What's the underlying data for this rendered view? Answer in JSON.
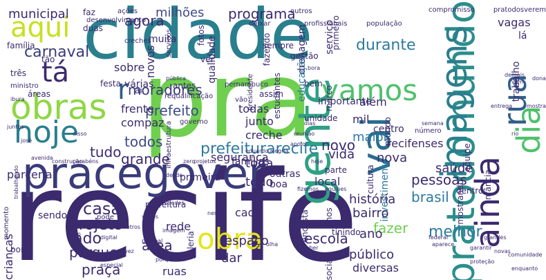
{
  "words": [
    {
      "text": "recife",
      "color": "#3b2a6e",
      "rot": 0
    },
    {
      "text": "pra",
      "color": "#6fcf4e",
      "rot": 0
    },
    {
      "text": "cidade",
      "color": "#2a7f8e",
      "rot": 0
    },
    {
      "text": "pracegover",
      "color": "#3a3b7a",
      "rot": 0
    },
    {
      "text": "pratodomundo",
      "color": "#2b8e8c",
      "rot": -90
    },
    {
      "text": "gente",
      "color": "#2fa084",
      "rot": -90
    },
    {
      "text": "imagens",
      "color": "#2a7f8e",
      "rot": -90
    },
    {
      "text": "vai",
      "color": "#2a6d8f",
      "rot": -90
    },
    {
      "text": "ainda",
      "color": "#3b2a6e",
      "rot": -90
    },
    {
      "text": "dia",
      "color": "#4fc16b",
      "rot": -90
    },
    {
      "text": "rua",
      "color": "#2f5d8c",
      "rot": -90
    },
    {
      "text": "obras",
      "color": "#8fd744",
      "rot": 0
    },
    {
      "text": "hoje",
      "color": "#2a7f8e",
      "rot": 0
    },
    {
      "text": "vamos",
      "color": "#4fc16b",
      "rot": 0
    },
    {
      "text": "aqui",
      "color": "#c8e020",
      "rot": 0
    },
    {
      "text": "tá",
      "color": "#3b2a6e",
      "rot": 0
    },
    {
      "text": "obra",
      "color": "#e6e419",
      "rot": 0
    },
    {
      "text": "r",
      "color": "#2f5d8c",
      "rot": 0
    },
    {
      "text": "prefeiturarecife",
      "color": "#2c7aa0",
      "rot": 0
    },
    {
      "text": "municipal",
      "color": "#3b2a6e",
      "rot": 0
    },
    {
      "text": "agora",
      "color": "#3b2a6e",
      "rot": 0
    },
    {
      "text": "milhões",
      "color": "#3e4a89",
      "rot": 0
    },
    {
      "text": "programa",
      "color": "#3b2a6e",
      "rot": 0
    },
    {
      "text": "durante",
      "color": "#2c7aa0",
      "rot": 0
    },
    {
      "text": "carnaval",
      "color": "#3a3b7a",
      "rot": 0
    },
    {
      "text": "moradores",
      "color": "#3a3b7a",
      "rot": 0
    },
    {
      "text": "sobre",
      "color": "#3b2a6e",
      "rot": 0
    },
    {
      "text": "várias",
      "color": "#3b2a6e",
      "rot": 0
    },
    {
      "text": "drenagem",
      "color": "#3b2a6e",
      "rot": -90
    },
    {
      "text": "serviço",
      "color": "#3b2a6e",
      "rot": -90
    },
    {
      "text": "vagas",
      "color": "#3b2a6e",
      "rot": 0
    },
    {
      "text": "lá",
      "color": "#3b2a6e",
      "rot": 0
    },
    {
      "text": "trabalho",
      "color": "#3b2a6e",
      "rot": -90
    },
    {
      "text": "investimento",
      "color": "#2c7aa0",
      "rot": -90
    },
    {
      "text": "prefeito",
      "color": "#3e4a89",
      "rot": 0
    },
    {
      "text": "todos",
      "color": "#3e4a89",
      "rot": 0
    },
    {
      "text": "grande",
      "color": "#3b2a6e",
      "rot": 0
    },
    {
      "text": "tudo",
      "color": "#3b2a6e",
      "rot": 0
    },
    {
      "text": "parceria",
      "color": "#3b2a6e",
      "rot": 0
    },
    {
      "text": "educação",
      "color": "#2c7aa0",
      "rot": -90
    },
    {
      "text": "além",
      "color": "#3b2a6e",
      "rot": 0
    },
    {
      "text": "mil",
      "color": "#3b2a6e",
      "rot": 0
    },
    {
      "text": "maior",
      "color": "#2c7aa0",
      "rot": 0
    },
    {
      "text": "novo",
      "color": "#3b2a6e",
      "rot": 0
    },
    {
      "text": "vida",
      "color": "#3b2a6e",
      "rot": 0
    },
    {
      "text": "segurança",
      "color": "#3b2a6e",
      "rot": 0
    },
    {
      "text": "famílias",
      "color": "#3b2a6e",
      "rot": 0
    },
    {
      "text": "recifenses",
      "color": "#3b2a6e",
      "rot": 0
    },
    {
      "text": "nova",
      "color": "#3b2a6e",
      "rot": 0
    },
    {
      "text": "saúde",
      "color": "#3b2a6e",
      "rot": 0
    },
    {
      "text": "pessoas",
      "color": "#3b2a6e",
      "rot": 0
    },
    {
      "text": "brasil",
      "color": "#2c7aa0",
      "rot": 0
    },
    {
      "text": "casa",
      "color": "#3b2a6e",
      "rot": 0
    },
    {
      "text": "projeto",
      "color": "#3b2a6e",
      "rot": 0
    },
    {
      "text": "lado",
      "color": "#3b2a6e",
      "rot": 0
    },
    {
      "text": "parque",
      "color": "#3b2a6e",
      "rot": 0
    },
    {
      "text": "crianças",
      "color": "#3b2a6e",
      "rot": -90
    },
    {
      "text": "praça",
      "color": "#3b2a6e",
      "rot": 0
    },
    {
      "text": "área",
      "color": "#3b2a6e",
      "rot": 0
    },
    {
      "text": "todo",
      "color": "#3b2a6e",
      "rot": 0
    },
    {
      "text": "toda",
      "color": "#3b2a6e",
      "rot": 0
    },
    {
      "text": "rede",
      "color": "#3b2a6e",
      "rot": 0
    },
    {
      "text": "cada",
      "color": "#3b2a6e",
      "rot": 0
    },
    {
      "text": "escola",
      "color": "#3b2a6e",
      "rot": 0
    },
    {
      "text": "fazer",
      "color": "#6fcf4e",
      "rot": 0
    },
    {
      "text": "melhor",
      "color": "#2c7aa0",
      "rot": 0
    },
    {
      "text": "ano",
      "color": "#3b2a6e",
      "rot": 0
    },
    {
      "text": "bairro",
      "color": "#3b2a6e",
      "rot": 0
    },
    {
      "text": "história",
      "color": "#3b2a6e",
      "rot": 0
    },
    {
      "text": "público",
      "color": "#3b2a6e",
      "rot": 0
    },
    {
      "text": "diversas",
      "color": "#3b2a6e",
      "rot": 0
    },
    {
      "text": "espaço",
      "color": "#3b2a6e",
      "rot": 0
    },
    {
      "text": "dar",
      "color": "#3b2a6e",
      "rot": 0
    },
    {
      "text": "ruas",
      "color": "#3b2a6e",
      "rot": 0
    },
    {
      "text": "frente",
      "color": "#3b2a6e",
      "rot": 0
    },
    {
      "text": "compaz",
      "color": "#3b2a6e",
      "rot": 0
    },
    {
      "text": "todas",
      "color": "#3b2a6e",
      "rot": 0
    },
    {
      "text": "junto",
      "color": "#3b2a6e",
      "rot": 0
    },
    {
      "text": "creche",
      "color": "#3b2a6e",
      "rot": 0
    },
    {
      "text": "centro",
      "color": "#3b2a6e",
      "rot": 0
    },
    {
      "text": "local",
      "color": "#3b2a6e",
      "rot": 0
    },
    {
      "text": "boa",
      "color": "#3b2a6e",
      "rot": 0
    },
    {
      "text": "outras",
      "color": "#3b2a6e",
      "rot": 0
    },
    {
      "text": "primeira",
      "color": "#3b2a6e",
      "rot": 0
    },
    {
      "text": "sendo",
      "color": "#3b2a6e",
      "rot": 0
    },
    {
      "text": "prefeitura",
      "color": "#3b2a6e",
      "rot": 0
    },
    {
      "text": "importante",
      "color": "#3b2a6e",
      "rot": 0
    },
    {
      "text": "unidade",
      "color": "#3b2a6e",
      "rot": 0
    },
    {
      "text": "parte",
      "color": "#3b2a6e",
      "rot": 0
    },
    {
      "text": "assim",
      "color": "#3b2a6e",
      "rot": 0
    },
    {
      "text": "bem",
      "color": "#3b2a6e",
      "rot": 0
    },
    {
      "text": "gestão",
      "color": "#3b2a6e",
      "rot": 0
    },
    {
      "text": "sempre",
      "color": "#3b2a6e",
      "rot": 0
    },
    {
      "text": "fazendo",
      "color": "#3b2a6e",
      "rot": -90
    },
    {
      "text": "qualidade",
      "color": "#3b2a6e",
      "rot": -90
    },
    {
      "text": "estudantes",
      "color": "#3b2a6e",
      "rot": -90
    },
    {
      "text": "primeiro",
      "color": "#3b2a6e",
      "rot": -90
    },
    {
      "text": "vão",
      "color": "#3b2a6e",
      "rot": 0
    },
    {
      "text": "ver",
      "color": "#3b2a6e",
      "rot": 0
    },
    {
      "text": "fotos",
      "color": "#3b2a6e",
      "rot": -90
    },
    {
      "text": "novos",
      "color": "#3b2a6e",
      "rot": -90
    },
    {
      "text": "muita",
      "color": "#3b2a6e",
      "rot": 0
    },
    {
      "text": "aí",
      "color": "#3b2a6e",
      "rot": 0
    },
    {
      "text": "festa",
      "color": "#3b2a6e",
      "rot": 0
    },
    {
      "text": "áreas",
      "color": "#3b2a6e",
      "rot": 0
    },
    {
      "text": "três",
      "color": "#3b2a6e",
      "rot": 0
    },
    {
      "text": "ministro",
      "color": "#3b2a6e",
      "rot": 0
    },
    {
      "text": "família",
      "color": "#3b2a6e",
      "rot": 0
    },
    {
      "text": "tão",
      "color": "#3b2a6e",
      "rot": 0
    },
    {
      "text": "duas",
      "color": "#3b2a6e",
      "rot": 0
    },
    {
      "text": "faz",
      "color": "#3b2a6e",
      "rot": 0
    },
    {
      "text": "ações",
      "color": "#3b2a6e",
      "rot": 0
    },
    {
      "text": "outros",
      "color": "#3b2a6e",
      "rot": 0
    },
    {
      "text": "compromisso",
      "color": "#3b2a6e",
      "rot": 0
    },
    {
      "text": "pratodosverem",
      "color": "#3b2a6e",
      "rot": 0
    },
    {
      "text": "população",
      "color": "#3b2a6e",
      "rot": 0
    },
    {
      "text": "profissionais",
      "color": "#3b2a6e",
      "rot": 0
    },
    {
      "text": "deixar",
      "color": "#3b2a6e",
      "rot": 0
    },
    {
      "text": "creches",
      "color": "#3b2a6e",
      "rot": 0
    },
    {
      "text": "desenvolvimento",
      "color": "#3b2a6e",
      "rot": 0
    },
    {
      "text": "serviços",
      "color": "#3b2a6e",
      "rot": -90
    },
    {
      "text": "mundo",
      "color": "#3b2a6e",
      "rot": -90
    },
    {
      "text": "marco",
      "color": "#3b2a6e",
      "rot": -90
    },
    {
      "text": "antes",
      "color": "#3b2a6e",
      "rot": 0
    },
    {
      "text": "governo",
      "color": "#3b2a6e",
      "rot": 0
    },
    {
      "text": "infraestrutura",
      "color": "#3b2a6e",
      "rot": -90
    },
    {
      "text": "requalificação",
      "color": "#3b2a6e",
      "rot": 0
    },
    {
      "text": "pública",
      "color": "#3b2a6e",
      "rot": 0
    },
    {
      "text": "pernambuco",
      "color": "#3b2a6e",
      "rot": 0
    },
    {
      "text": "presidente",
      "color": "#3b2a6e",
      "rot": -90
    },
    {
      "text": "equipe",
      "color": "#3b2a6e",
      "rot": -90
    },
    {
      "text": "infância",
      "color": "#3b2a6e",
      "rot": -90
    },
    {
      "text": "mostrando",
      "color": "#3b2a6e",
      "rot": -90
    },
    {
      "text": "dentro",
      "color": "#3b2a6e",
      "rot": 0
    },
    {
      "text": "cultura",
      "color": "#3b2a6e",
      "rot": -90
    },
    {
      "text": "encosta",
      "color": "#3b2a6e",
      "rot": -90
    },
    {
      "text": "anos",
      "color": "#3b2a6e",
      "rot": -90
    },
    {
      "text": "tinindo",
      "color": "#3b2a6e",
      "rot": 0
    },
    {
      "text": "dois",
      "color": "#3b2a6e",
      "rot": 0
    },
    {
      "text": "social",
      "color": "#3b2a6e",
      "rot": -90
    },
    {
      "text": "galeria",
      "color": "#3b2a6e",
      "rot": -90
    },
    {
      "text": "momento",
      "color": "#3b2a6e",
      "rot": -90
    },
    {
      "text": "bom",
      "color": "#3b2a6e",
      "rot": 0
    },
    {
      "text": "pode",
      "color": "#3b2a6e",
      "rot": 0
    },
    {
      "text": "digital",
      "color": "#3b2a6e",
      "rot": 0
    },
    {
      "text": "imagem",
      "color": "#3b2a6e",
      "rot": 0
    },
    {
      "text": "unidades",
      "color": "#3b2a6e",
      "rot": 0
    },
    {
      "text": "pessoal",
      "color": "#3b2a6e",
      "rot": 0
    },
    {
      "text": "vez",
      "color": "#3b2a6e",
      "rot": 0
    },
    {
      "text": "porque",
      "color": "#3b2a6e",
      "rot": 0
    },
    {
      "text": "especial",
      "color": "#3b2a6e",
      "rot": 0
    },
    {
      "text": "metros",
      "color": "#3b2a6e",
      "rot": 0
    },
    {
      "text": "cerca",
      "color": "#3b2a6e",
      "rot": 0
    },
    {
      "text": "palco",
      "color": "#3b2a6e",
      "rot": 0
    },
    {
      "text": "neste",
      "color": "#3b2a6e",
      "rot": 0
    },
    {
      "text": "olha",
      "color": "#3b2a6e",
      "rot": 0
    },
    {
      "text": "receber",
      "color": "#3b2a6e",
      "rot": 0
    },
    {
      "text": "federal",
      "color": "#3b2a6e",
      "rot": 0
    },
    {
      "text": "aparece",
      "color": "#3b2a6e",
      "rot": 0
    },
    {
      "text": "proteção",
      "color": "#3b2a6e",
      "rot": 0
    },
    {
      "text": "garantir",
      "color": "#3b2a6e",
      "rot": 0
    },
    {
      "text": "novas",
      "color": "#3b2a6e",
      "rot": 0
    },
    {
      "text": "enquanto",
      "color": "#3b2a6e",
      "rot": 0
    },
    {
      "text": "comunidade",
      "color": "#3b2a6e",
      "rot": 0
    },
    {
      "text": "grandes",
      "color": "#3b2a6e",
      "rot": 0
    },
    {
      "text": "rio",
      "color": "#3b2a6e",
      "rot": 0
    },
    {
      "text": "mostra",
      "color": "#3b2a6e",
      "rot": 0
    },
    {
      "text": "entrega",
      "color": "#3b2a6e",
      "rot": 0
    },
    {
      "text": "semana",
      "color": "#3b2a6e",
      "rot": 0
    },
    {
      "text": "número",
      "color": "#3b2a6e",
      "rot": 0
    },
    {
      "text": "dias",
      "color": "#3b2a6e",
      "rot": 0
    },
    {
      "text": "reunião",
      "color": "#3b2a6e",
      "rot": 0
    },
    {
      "text": "apoio",
      "color": "#3b2a6e",
      "rot": 0
    },
    {
      "text": "eduardo",
      "color": "#3b2a6e",
      "rot": 0
    },
    {
      "text": "alegria",
      "color": "#3b2a6e",
      "rot": 0
    },
    {
      "text": "fizemos",
      "color": "#3b2a6e",
      "rot": 0
    },
    {
      "text": "equipes",
      "color": "#3b2a6e",
      "rot": 0
    },
    {
      "text": "zero",
      "color": "#3b2a6e",
      "rot": 0
    },
    {
      "text": "disso",
      "color": "#3b2a6e",
      "rot": 0
    },
    {
      "text": "parabéns",
      "color": "#3b2a6e",
      "rot": 0
    },
    {
      "text": "construção",
      "color": "#3b2a6e",
      "rot": 0
    },
    {
      "text": "trabalhando",
      "color": "#3b2a6e",
      "rot": -90
    },
    {
      "text": "avenida",
      "color": "#3b2a6e",
      "rot": 0
    },
    {
      "text": "josé",
      "color": "#3b2a6e",
      "rot": 0
    },
    {
      "text": "juntos",
      "color": "#3b2a6e",
      "rot": 0
    },
    {
      "text": "ibura",
      "color": "#3b2a6e",
      "rot": 0
    },
    {
      "text": "dona",
      "color": "#3b2a6e",
      "rot": 0
    },
    {
      "text": "vem",
      "color": "#3b2a6e",
      "rot": 0
    },
    {
      "text": "demais",
      "color": "#3b2a6e",
      "rot": 0
    },
    {
      "text": "bora",
      "color": "#3b2a6e",
      "rot": 0
    },
    {
      "text": "feliz",
      "color": "#3b2a6e",
      "rot": 0
    },
    {
      "text": "desde",
      "color": "#3b2a6e",
      "rot": 0
    },
    {
      "text": "vários",
      "color": "#3b2a6e",
      "rot": 0
    },
    {
      "text": "sem",
      "color": "#3b2a6e",
      "rot": 0
    },
    {
      "text": "hoje",
      "color": "#3b2a6e",
      "rot": 0
    },
    {
      "text": "projetos",
      "color": "#3b2a6e",
      "rot": 0
    }
  ]
}
